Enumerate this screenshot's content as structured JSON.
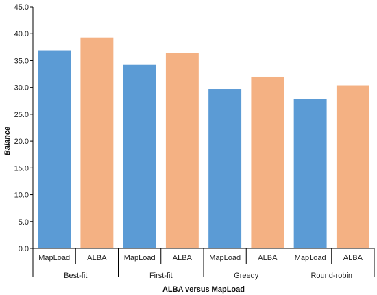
{
  "chart_data": {
    "type": "bar",
    "title": "",
    "xlabel": "ALBA versus MapLoad",
    "ylabel": "Balance",
    "ylim": [
      0,
      45
    ],
    "yticks": [
      "0.0",
      "5.0",
      "10.0",
      "15.0",
      "20.0",
      "25.0",
      "30.0",
      "35.0",
      "40.0",
      "45.0"
    ],
    "grid": false,
    "legend": "none",
    "groups": [
      {
        "name": "Best-fit",
        "categories": [
          "MapLoad",
          "ALBA"
        ],
        "values": [
          36.9,
          39.3
        ]
      },
      {
        "name": "First-fit",
        "categories": [
          "MapLoad",
          "ALBA"
        ],
        "values": [
          34.2,
          36.4
        ]
      },
      {
        "name": "Greedy",
        "categories": [
          "MapLoad",
          "ALBA"
        ],
        "values": [
          29.7,
          32.0
        ]
      },
      {
        "name": "Round-robin",
        "categories": [
          "MapLoad",
          "ALBA"
        ],
        "values": [
          27.8,
          30.4
        ]
      }
    ],
    "colors": {
      "MapLoad": "#5b9bd5",
      "ALBA": "#f4b183"
    }
  }
}
